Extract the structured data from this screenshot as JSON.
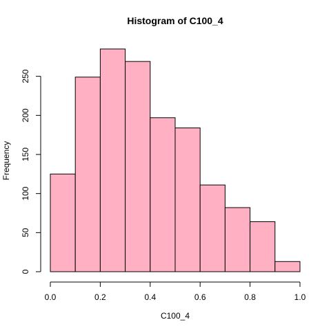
{
  "chart_data": {
    "type": "bar",
    "subtype": "histogram",
    "title": "Histogram of C100_4",
    "xlabel": "C100_4",
    "ylabel": "Frequency",
    "bins": [
      {
        "start": 0.0,
        "end": 0.1,
        "count": 125
      },
      {
        "start": 0.1,
        "end": 0.2,
        "count": 249
      },
      {
        "start": 0.2,
        "end": 0.3,
        "count": 285
      },
      {
        "start": 0.3,
        "end": 0.4,
        "count": 269
      },
      {
        "start": 0.4,
        "end": 0.5,
        "count": 197
      },
      {
        "start": 0.5,
        "end": 0.6,
        "count": 184
      },
      {
        "start": 0.6,
        "end": 0.7,
        "count": 111
      },
      {
        "start": 0.7,
        "end": 0.8,
        "count": 82
      },
      {
        "start": 0.8,
        "end": 0.9,
        "count": 64
      },
      {
        "start": 0.9,
        "end": 1.0,
        "count": 13
      }
    ],
    "xlim": [
      0.0,
      1.0
    ],
    "ylim": [
      0,
      285
    ],
    "x_ticks": [
      "0.0",
      "0.2",
      "0.4",
      "0.6",
      "0.8",
      "1.0"
    ],
    "y_ticks": [
      "0",
      "50",
      "100",
      "150",
      "200",
      "250"
    ],
    "bar_color": "#FFB0C2",
    "edge_color": "#000000",
    "grid": false,
    "legend": "none"
  }
}
